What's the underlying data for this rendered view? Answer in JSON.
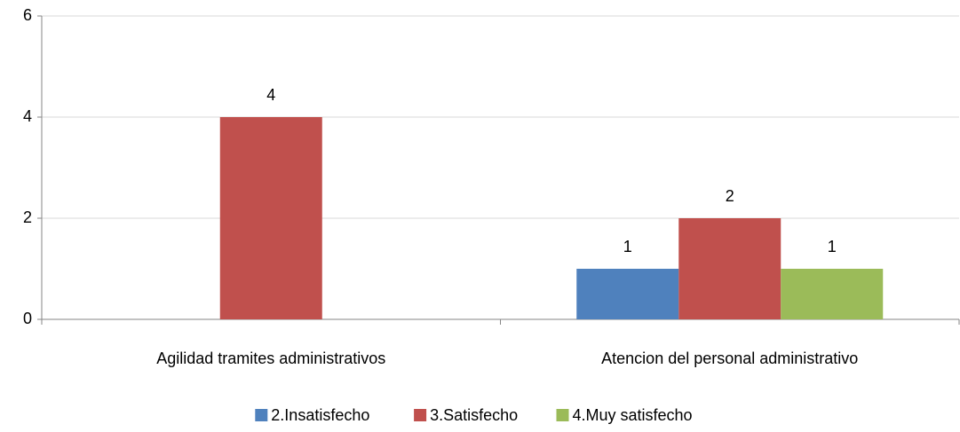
{
  "chart_data": {
    "type": "bar",
    "categories": [
      "Agilidad tramites administrativos",
      "Atencion del personal administrativo"
    ],
    "series": [
      {
        "name": "2.Insatisfecho",
        "color": "#4f81bd",
        "values": [
          null,
          1
        ]
      },
      {
        "name": "3.Satisfecho",
        "color": "#c0504d",
        "values": [
          4,
          2
        ]
      },
      {
        "name": "4.Muy satisfecho",
        "color": "#9bbb59",
        "values": [
          null,
          1
        ]
      }
    ],
    "ylim": [
      0,
      6
    ],
    "yticks": [
      0,
      2,
      4,
      6
    ],
    "grid": true,
    "legend": "bottom"
  }
}
